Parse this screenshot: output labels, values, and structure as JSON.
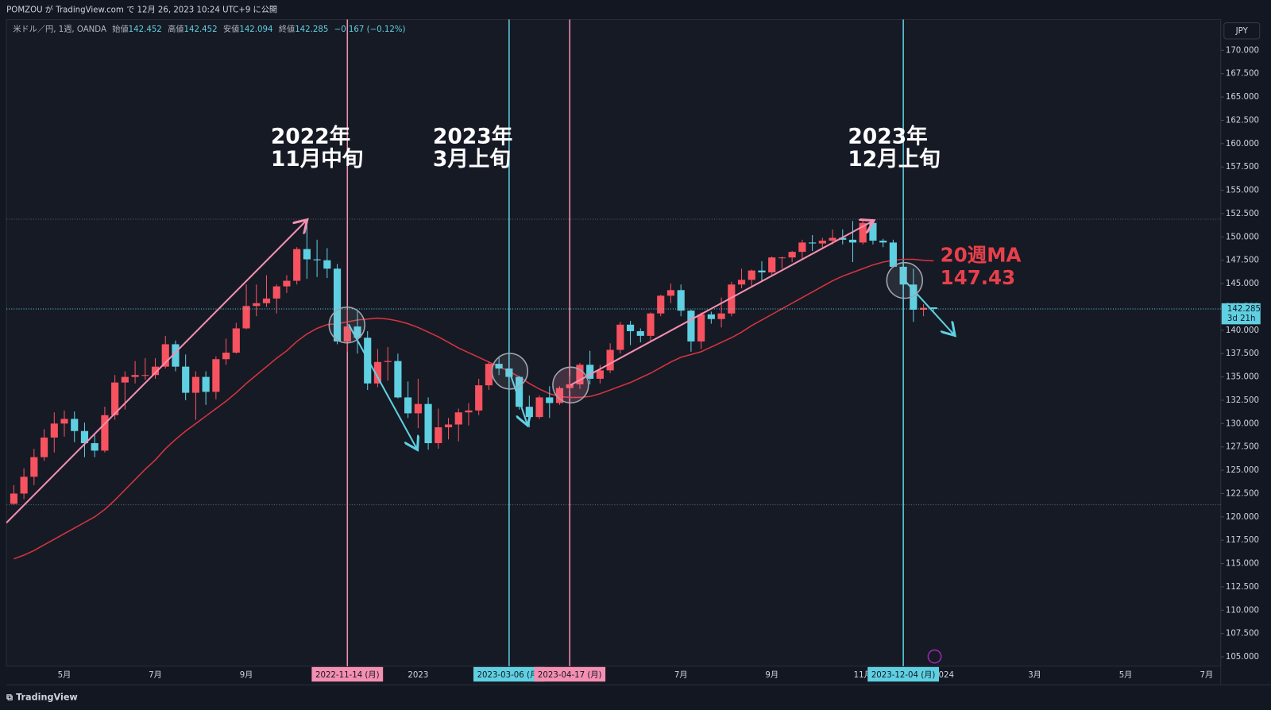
{
  "header": "POMZOU が TradingView.com で 12月 26, 2023 10:24 UTC+9 に公開",
  "legend": {
    "symbol": "米ドル／円, 1週, OANDA",
    "fields": [
      {
        "label": "始値",
        "value": 142.452
      },
      {
        "label": "高値",
        "value": 142.452
      },
      {
        "label": "安値",
        "value": 142.094
      },
      {
        "label": "終値",
        "value": 142.285
      }
    ],
    "change": "−0.167 (−0.12%)"
  },
  "currency": "JPY",
  "logo": "TradingView",
  "chart_data": {
    "type": "candlestick",
    "up_color": "#f7525f",
    "down_color": "#5fd0e2",
    "categories": [
      null,
      null,
      null,
      null,
      null,
      "5月",
      null,
      null,
      null,
      null,
      null,
      null,
      null,
      null,
      "7月",
      null,
      null,
      null,
      null,
      null,
      null,
      null,
      null,
      "9月",
      null,
      null,
      null,
      null,
      null,
      null,
      null,
      null,
      null,
      null,
      null,
      null,
      null,
      null,
      null,
      null,
      "2023",
      null,
      null,
      null,
      null,
      null,
      null,
      null,
      null,
      null,
      null,
      null,
      null,
      null,
      null,
      null,
      null,
      null,
      null,
      null,
      null,
      null,
      null,
      null,
      null,
      null,
      "7月",
      null,
      null,
      null,
      null,
      null,
      null,
      null,
      null,
      "9月",
      null,
      null,
      null,
      null,
      null,
      null,
      null,
      null,
      "11月",
      null,
      null,
      null,
      null,
      null,
      null,
      null,
      "2024",
      null,
      null,
      null,
      null,
      null,
      null,
      null,
      null,
      "3月",
      null,
      null,
      null,
      null,
      null,
      null,
      null,
      null,
      "5月",
      null,
      null,
      null,
      null,
      null,
      null,
      null,
      "7月"
    ],
    "open": [
      121.4,
      122.5,
      124.3,
      126.4,
      128.5,
      130.0,
      130.5,
      129.2,
      127.9,
      127.1,
      130.9,
      134.4,
      135.0,
      135.2,
      135.2,
      136.1,
      138.5,
      136.1,
      133.3,
      135.0,
      133.4,
      136.9,
      137.6,
      140.2,
      142.6,
      142.9,
      143.4,
      144.7,
      145.3,
      148.7,
      147.6,
      147.5,
      146.6,
      138.8,
      140.4,
      139.2,
      134.3,
      136.6,
      136.7,
      132.8,
      131.1,
      132.1,
      127.9,
      129.6,
      129.9,
      131.2,
      131.4,
      134.1,
      136.4,
      135.9,
      135.0,
      131.8,
      130.7,
      132.8,
      132.2,
      133.8,
      134.2,
      136.3,
      134.8,
      135.7,
      137.9,
      140.6,
      139.9,
      139.4,
      141.8,
      143.7,
      144.3,
      142.1,
      138.8,
      141.7,
      141.2,
      141.8,
      144.9,
      145.4,
      146.4,
      146.2,
      147.8,
      147.8,
      148.4,
      149.4,
      149.3,
      149.6,
      149.9,
      149.7,
      149.4,
      151.5,
      149.6,
      149.4,
      146.8,
      144.9,
      142.2,
      142.452,
      null,
      null,
      null,
      null,
      null,
      null,
      null,
      null,
      null,
      null,
      null,
      null,
      null,
      null,
      null,
      null,
      null,
      null,
      null,
      null,
      null,
      null,
      null,
      null,
      null,
      null,
      null
    ],
    "high": [
      123.4,
      125.2,
      127.3,
      129.4,
      131.2,
      131.4,
      131.3,
      130.1,
      128.8,
      131.8,
      135.2,
      135.6,
      136.7,
      137.0,
      137.0,
      139.4,
      138.9,
      137.4,
      135.6,
      135.6,
      137.2,
      139.1,
      140.8,
      144.9,
      144.9,
      145.9,
      144.9,
      145.9,
      148.9,
      151.9,
      149.7,
      148.8,
      147.1,
      142.2,
      142.0,
      139.9,
      138.0,
      138.2,
      137.5,
      134.5,
      134.8,
      132.8,
      131.6,
      130.6,
      131.6,
      132.2,
      134.8,
      136.6,
      137.1,
      137.9,
      135.1,
      133.0,
      133.0,
      134.0,
      134.0,
      135.1,
      136.5,
      137.8,
      136.3,
      138.6,
      140.9,
      141.0,
      140.2,
      141.9,
      143.8,
      145.0,
      144.9,
      142.2,
      141.9,
      142.0,
      143.5,
      145.2,
      146.6,
      146.5,
      147.4,
      147.9,
      147.9,
      148.5,
      149.7,
      150.2,
      149.9,
      150.8,
      150.8,
      151.7,
      151.9,
      151.9,
      149.8,
      149.7,
      147.3,
      146.6,
      142.8,
      142.452,
      null,
      null,
      null,
      null,
      null,
      null,
      null,
      null,
      null,
      null,
      null,
      null,
      null,
      null,
      null,
      null,
      null,
      null,
      null,
      null,
      null,
      null,
      null,
      null,
      null,
      null,
      null
    ],
    "low": [
      121.3,
      121.9,
      123.4,
      126.0,
      126.9,
      128.6,
      128.0,
      126.4,
      126.4,
      126.9,
      130.4,
      131.5,
      134.3,
      134.7,
      134.8,
      135.9,
      135.6,
      132.5,
      130.4,
      132.0,
      132.6,
      136.3,
      137.5,
      140.1,
      141.5,
      142.5,
      141.8,
      144.0,
      144.9,
      145.5,
      145.7,
      145.6,
      138.5,
      137.7,
      137.5,
      133.6,
      133.9,
      134.6,
      132.7,
      130.6,
      129.5,
      127.2,
      127.3,
      128.3,
      128.1,
      129.8,
      130.9,
      133.6,
      135.2,
      134.1,
      131.5,
      129.6,
      130.5,
      130.6,
      132.0,
      133.5,
      133.7,
      134.2,
      134.3,
      135.4,
      137.5,
      138.4,
      138.7,
      138.8,
      141.5,
      142.9,
      141.5,
      137.7,
      138.0,
      140.7,
      140.3,
      141.5,
      144.5,
      144.6,
      145.3,
      145.9,
      146.6,
      147.3,
      147.6,
      148.5,
      148.8,
      149.2,
      149.2,
      147.3,
      149.2,
      149.2,
      148.9,
      146.7,
      144.5,
      140.9,
      141.5,
      142.094,
      null,
      null,
      null,
      null,
      null,
      null,
      null,
      null,
      null,
      null,
      null,
      null,
      null,
      null,
      null,
      null,
      null,
      null,
      null,
      null,
      null,
      null,
      null,
      null,
      null,
      null,
      null
    ],
    "close": [
      122.5,
      124.3,
      126.4,
      128.5,
      130.0,
      130.5,
      129.2,
      127.9,
      127.1,
      130.9,
      134.4,
      135.0,
      135.2,
      135.2,
      136.1,
      138.5,
      136.1,
      133.3,
      135.0,
      133.4,
      136.9,
      137.6,
      140.2,
      142.6,
      142.9,
      143.4,
      144.7,
      145.3,
      148.7,
      147.6,
      147.5,
      146.6,
      138.8,
      140.4,
      139.2,
      134.3,
      136.6,
      136.7,
      132.8,
      131.1,
      132.1,
      127.9,
      129.6,
      129.9,
      131.2,
      131.4,
      134.1,
      136.4,
      135.9,
      135.0,
      131.8,
      130.7,
      132.8,
      132.2,
      133.8,
      134.2,
      136.3,
      134.8,
      135.7,
      137.9,
      140.6,
      139.9,
      139.4,
      141.8,
      143.7,
      144.3,
      142.1,
      138.8,
      141.7,
      141.2,
      141.8,
      144.9,
      145.4,
      146.4,
      146.2,
      147.8,
      147.8,
      148.4,
      149.4,
      149.3,
      149.6,
      149.9,
      149.7,
      149.4,
      151.5,
      149.6,
      149.4,
      146.8,
      144.9,
      142.2,
      142.4,
      142.285,
      null,
      null,
      null,
      null,
      null,
      null,
      null,
      null,
      null,
      null,
      null,
      null,
      null,
      null,
      null,
      null,
      null,
      null,
      null,
      null,
      null,
      null,
      null,
      null,
      null,
      null,
      null
    ],
    "ma": {
      "color": "#d8343f",
      "values": [
        115.5,
        115.9,
        116.4,
        117.0,
        117.6,
        118.2,
        118.8,
        119.4,
        120.0,
        120.8,
        121.8,
        122.9,
        124.0,
        125.1,
        126.1,
        127.3,
        128.3,
        129.2,
        130.0,
        130.8,
        131.6,
        132.4,
        133.3,
        134.3,
        135.2,
        136.1,
        137.0,
        137.8,
        138.8,
        139.6,
        140.2,
        140.6,
        140.7,
        140.9,
        141.1,
        141.2,
        141.3,
        141.2,
        141.0,
        140.7,
        140.3,
        139.8,
        139.3,
        138.7,
        138.1,
        137.6,
        137.1,
        136.6,
        136.1,
        135.6,
        135.0,
        134.3,
        133.7,
        133.2,
        132.9,
        132.8,
        132.8,
        132.9,
        133.2,
        133.6,
        134.0,
        134.4,
        134.9,
        135.4,
        136.0,
        136.6,
        137.1,
        137.4,
        137.7,
        138.2,
        138.7,
        139.2,
        139.8,
        140.5,
        141.1,
        141.7,
        142.3,
        142.9,
        143.5,
        144.1,
        144.7,
        145.3,
        145.8,
        146.2,
        146.6,
        147.0,
        147.3,
        147.5,
        147.6,
        147.6,
        147.5,
        147.43,
        null,
        null,
        null,
        null,
        null,
        null,
        null,
        null,
        null,
        null,
        null,
        null,
        null,
        null,
        null,
        null,
        null,
        null,
        null,
        null,
        null,
        null,
        null,
        null,
        null,
        null,
        null
      ]
    },
    "ylim": [
      104,
      173.3
    ],
    "yticks": [
      {
        "value": 105,
        "label": "105.000"
      },
      {
        "value": 107.5,
        "label": "107.500"
      },
      {
        "value": 110,
        "label": "110.000"
      },
      {
        "value": 112.5,
        "label": "112.500"
      },
      {
        "value": 115,
        "label": "115.000"
      },
      {
        "value": 117.5,
        "label": "117.500"
      },
      {
        "value": 120,
        "label": "120.000"
      },
      {
        "value": 122.5,
        "label": "122.500"
      },
      {
        "value": 125,
        "label": "125.000"
      },
      {
        "value": 127.5,
        "label": "127.500"
      },
      {
        "value": 130,
        "label": "130.000"
      },
      {
        "value": 132.5,
        "label": "132.500"
      },
      {
        "value": 135,
        "label": "135.000"
      },
      {
        "value": 137.5,
        "label": "137.500"
      },
      {
        "value": 140,
        "label": "140.000"
      },
      {
        "value": 142.5,
        "label": "142.500"
      },
      {
        "value": 145,
        "label": "145.000"
      },
      {
        "value": 147.5,
        "label": "147.500"
      },
      {
        "value": 150,
        "label": "150.000"
      },
      {
        "value": 152.5,
        "label": "152.500"
      },
      {
        "value": 155,
        "label": "155.000"
      },
      {
        "value": 157.5,
        "label": "157.500"
      },
      {
        "value": 160,
        "label": "160.000"
      },
      {
        "value": 162.5,
        "label": "162.500"
      },
      {
        "value": 165,
        "label": "165.000"
      },
      {
        "value": 167.5,
        "label": "167.500"
      },
      {
        "value": 170,
        "label": "170.000"
      }
    ],
    "levels": [
      151.9,
      121.3
    ],
    "current_price": {
      "value": 142.285,
      "countdown": "3d 21h",
      "color": "#5fd0e2"
    },
    "markers": [
      {
        "index": 33,
        "label": "2022-11-14 (月)",
        "color": "#f48fb1"
      },
      {
        "index": 49,
        "label": "2023-03-06 (月)",
        "color": "#5fd0e2"
      },
      {
        "index": 55,
        "label": "2023-04-17 (月)",
        "color": "#f48fb1"
      },
      {
        "index": 88,
        "label": "2023-12-04 (月)",
        "color": "#5fd0e2"
      }
    ],
    "annotations": [
      {
        "lines": [
          "2022年",
          "11月中旬"
        ]
      },
      {
        "lines": [
          "2023年",
          "3月上旬"
        ]
      },
      {
        "lines": [
          "2023年",
          "12月上旬"
        ]
      },
      {
        "lines": [
          "20週MA",
          "147.43"
        ]
      }
    ]
  }
}
